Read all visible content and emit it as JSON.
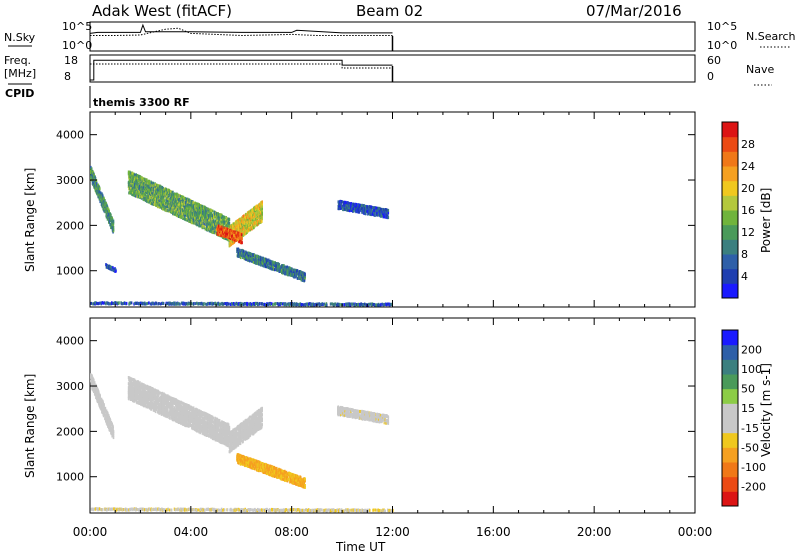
{
  "header": {
    "station": "Adak West (fitACF)",
    "beam": "Beam 02",
    "date": "07/Mar/2016"
  },
  "panels": {
    "nsky_label": "N.Sky",
    "nsearch_label": "N.Search",
    "nsky_ticks": [
      "10^5",
      "10^0"
    ],
    "nsky_right_ticks": [
      "10^5",
      "10^0"
    ],
    "freq_label_1": "Freq.",
    "freq_label_2": "[MHz]",
    "freq_ticks": [
      "18",
      "8"
    ],
    "nave_ticks": [
      "60",
      "0"
    ],
    "nave_label": "Nave",
    "cpid_label": "CPID",
    "cpid_value": "themis 3300 RF"
  },
  "colors": {
    "power": [
      "#1a1aff",
      "#1f3fb0",
      "#2e5fa8",
      "#3b7f7f",
      "#4a9a5a",
      "#70b43c",
      "#b4c83c",
      "#f0c81e",
      "#f5a020",
      "#f07818",
      "#eb4a14",
      "#dc1414"
    ],
    "velocity": [
      "#dc1414",
      "#eb4a14",
      "#f07818",
      "#f5a020",
      "#f0c81e",
      "#c8c8c8",
      "#c8c8c8",
      "#8ccc46",
      "#4a9a5a",
      "#3b7f7f",
      "#2e5fa8",
      "#1a1aff"
    ]
  },
  "chart_data": [
    {
      "type": "line",
      "title": "N.Sky / N.Search",
      "x_range_hours": [
        0,
        24
      ],
      "series": [
        {
          "name": "N.Sky",
          "x": [
            0,
            0.3,
            2,
            2.1,
            2.2,
            4,
            6,
            8,
            8.2,
            10,
            12
          ],
          "y_log10": [
            3.0,
            3.2,
            3.2,
            4.6,
            3.3,
            3.3,
            3.2,
            3.2,
            3.6,
            3.1,
            3.1
          ]
        },
        {
          "name": "N.Search",
          "x": [
            0,
            1,
            2,
            3,
            3.5,
            4,
            5,
            6,
            7,
            8,
            9,
            10,
            11,
            12
          ],
          "y_log10": [
            2.6,
            2.6,
            2.7,
            3.8,
            4.0,
            3.0,
            2.8,
            2.6,
            2.7,
            2.8,
            2.6,
            2.6,
            2.6,
            2.6
          ]
        }
      ]
    },
    {
      "type": "line",
      "title": "Freq. / Nave",
      "x_range_hours": [
        0,
        24
      ],
      "ylim_freq": [
        8,
        18
      ],
      "ylim_nave": [
        0,
        60
      ],
      "series": [
        {
          "name": "Freq.",
          "x": [
            0,
            0.15,
            0.15,
            10,
            10,
            12
          ],
          "y": [
            8,
            8,
            16.2,
            16.2,
            14.2,
            14.2
          ]
        },
        {
          "name": "Nave",
          "x": [
            0,
            10,
            10,
            12
          ],
          "y": [
            40,
            40,
            30,
            30
          ]
        }
      ]
    },
    {
      "type": "heatmap",
      "title": "Power",
      "xlabel": "",
      "ylabel": "Slant Range [km]",
      "colorbar_label": "Power [dB]",
      "colorbar_ticks": [
        "28",
        "24",
        "20",
        "16",
        "12",
        "8",
        "4"
      ],
      "colorbar_range": [
        0,
        30
      ],
      "y_ticks": [
        "4000",
        "3000",
        "2000",
        "1000"
      ],
      "ylim_km": [
        200,
        4500
      ],
      "x_range_hours": [
        0,
        24
      ],
      "regions": [
        {
          "label": "echo band",
          "t_start": 0.0,
          "t_end": 0.9,
          "r_start": 3200,
          "r_end": 2000,
          "width_km": 300,
          "power_db": 10
        },
        {
          "label": "echo band",
          "t_start": 1.5,
          "t_end": 5.5,
          "r_start": 3000,
          "r_end": 1950,
          "width_km": 500,
          "power_db": 12
        },
        {
          "label": "echo band",
          "t_start": 5.5,
          "t_end": 6.8,
          "r_start": 1800,
          "r_end": 2350,
          "width_km": 450,
          "power_db": 18
        },
        {
          "label": "echo band",
          "t_start": 5.0,
          "t_end": 6.0,
          "r_start": 1950,
          "r_end": 1750,
          "width_km": 220,
          "power_db": 26
        },
        {
          "label": "echo band",
          "t_start": 5.8,
          "t_end": 8.5,
          "r_start": 1450,
          "r_end": 900,
          "width_km": 200,
          "power_db": 8
        },
        {
          "label": "echo band",
          "t_start": 9.8,
          "t_end": 11.8,
          "r_start": 2500,
          "r_end": 2300,
          "width_km": 200,
          "power_db": 5
        },
        {
          "label": "echo band",
          "t_start": 0.6,
          "t_end": 1.0,
          "r_start": 1150,
          "r_end": 1050,
          "width_km": 80,
          "power_db": 5
        },
        {
          "label": "echo band",
          "t_start": 0.0,
          "t_end": 12.0,
          "r_start": 330,
          "r_end": 300,
          "width_km": 60,
          "power_db": 6
        }
      ]
    },
    {
      "type": "heatmap",
      "title": "Velocity",
      "xlabel": "Time UT",
      "ylabel": "Slant Range [km]",
      "colorbar_label": "Velocity [m s-1]",
      "colorbar_ticks": [
        "200",
        "100",
        "50",
        "15",
        "-15",
        "-50",
        "-100",
        "-200"
      ],
      "colorbar_range": [
        -250,
        250
      ],
      "y_ticks": [
        "4000",
        "3000",
        "2000",
        "1000"
      ],
      "ylim_km": [
        200,
        4500
      ],
      "x_range_hours": [
        0,
        24
      ],
      "x_ticks": [
        "00:00",
        "04:00",
        "08:00",
        "12:00",
        "16:00",
        "20:00",
        "00:00"
      ],
      "regions": [
        {
          "label": "echo band",
          "t_start": 0.0,
          "t_end": 0.9,
          "r_start": 3200,
          "r_end": 2000,
          "width_km": 300,
          "velocity": 0
        },
        {
          "label": "echo band",
          "t_start": 1.5,
          "t_end": 5.5,
          "r_start": 3000,
          "r_end": 1950,
          "width_km": 500,
          "velocity": 0
        },
        {
          "label": "echo band",
          "t_start": 5.5,
          "t_end": 6.8,
          "r_start": 1800,
          "r_end": 2350,
          "width_km": 450,
          "velocity": 0
        },
        {
          "label": "echo band",
          "t_start": 5.8,
          "t_end": 8.5,
          "r_start": 1450,
          "r_end": 900,
          "width_km": 220,
          "velocity": -90
        },
        {
          "label": "echo band",
          "t_start": 9.8,
          "t_end": 11.8,
          "r_start": 2500,
          "r_end": 2300,
          "width_km": 200,
          "velocity": -20
        },
        {
          "label": "echo band",
          "t_start": 0.0,
          "t_end": 12.0,
          "r_start": 330,
          "r_end": 300,
          "width_km": 60,
          "velocity": -30
        }
      ]
    }
  ]
}
